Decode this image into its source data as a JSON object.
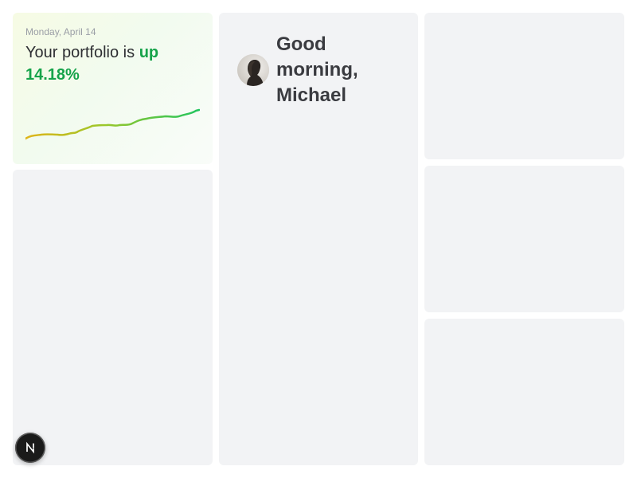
{
  "portfolio": {
    "date": "Monday, April 14",
    "heading_prefix": "Your portfolio is ",
    "heading_change": "up 14.18%",
    "trend_color_start": "#e0b419",
    "trend_color_end": "#22c55e"
  },
  "greeting": {
    "text": "Good morning, Michael",
    "avatar_icon": "profile-silhouette"
  },
  "fab": {
    "icon": "next-logo-icon",
    "label": "N"
  },
  "colors": {
    "card_background": "#f2f3f5",
    "accent_green": "#16a34a",
    "text_dark": "#3a3b40",
    "text_muted": "#9a9ea6"
  }
}
